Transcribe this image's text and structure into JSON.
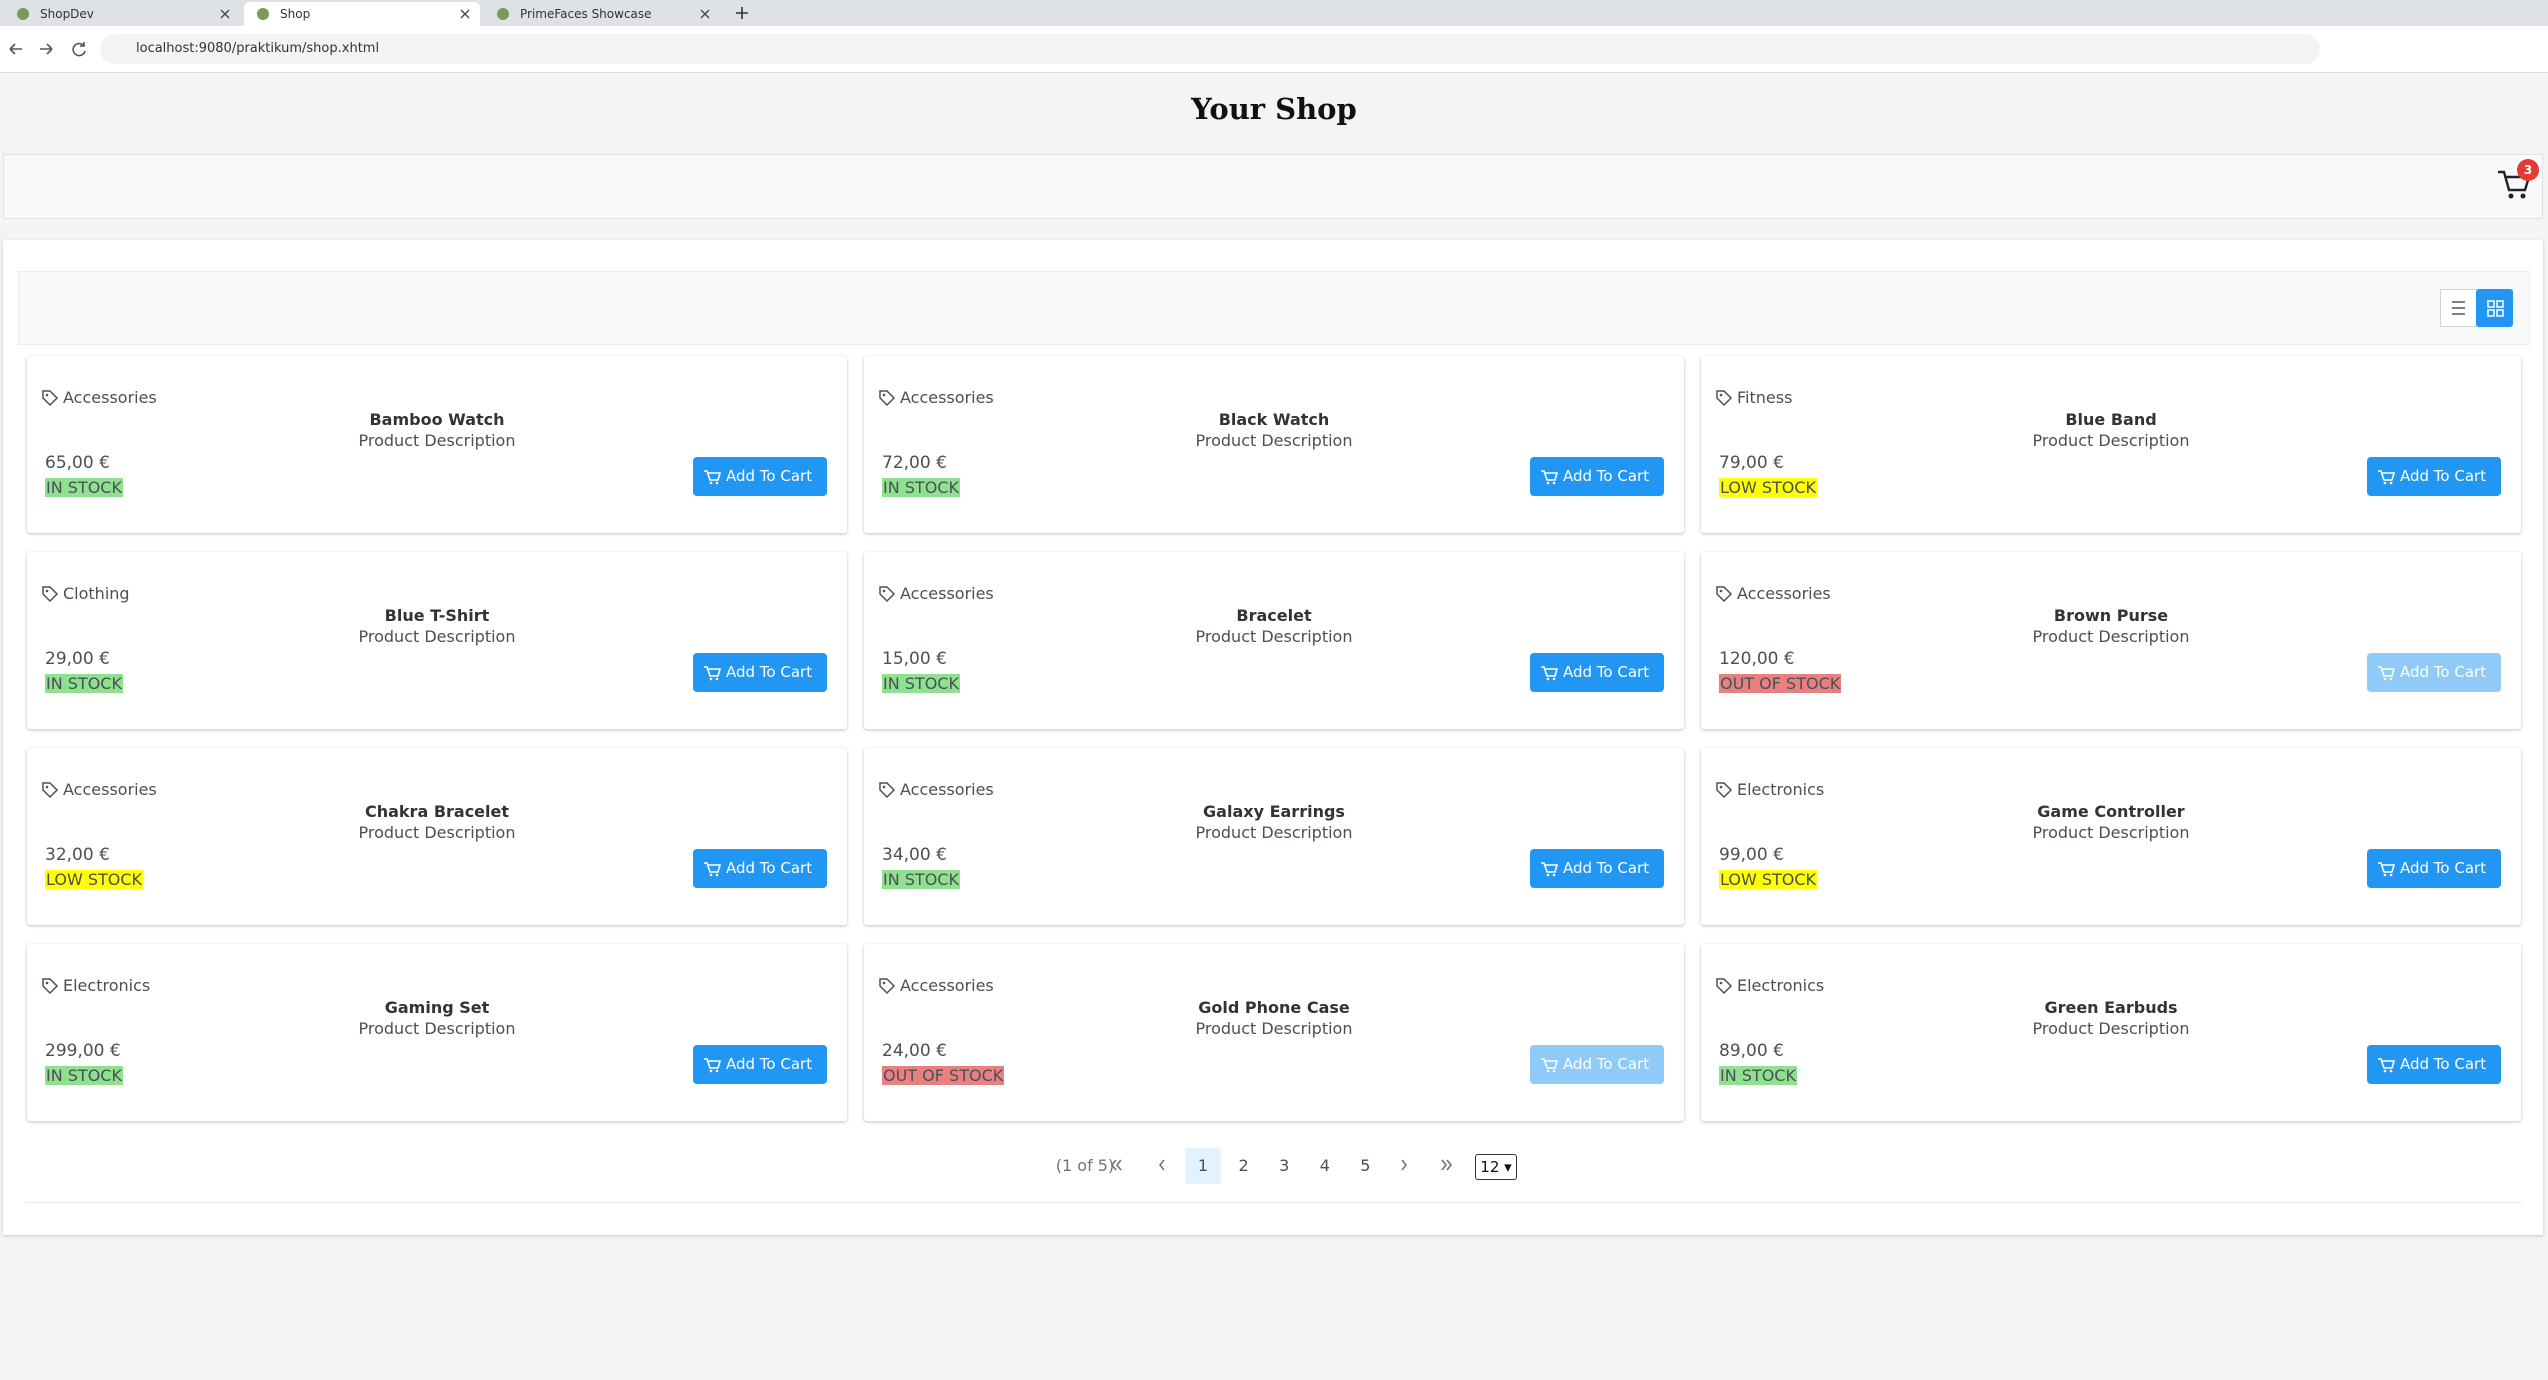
{
  "browser": {
    "tabs": [
      "ShopDev",
      "Shop",
      "PrimeFaces Showcase"
    ],
    "active_tab": 1,
    "url": "localhost:9080/praktikum/shop.xhtml"
  },
  "header": {
    "title": "Your Shop",
    "cart_count": "3"
  },
  "products": [
    {
      "category": "Accessories",
      "name": "Bamboo Watch",
      "description": "Product Description",
      "price": "65,00 €",
      "stock": "IN STOCK",
      "stock_color": "#8fe08f",
      "button": "Add To Cart",
      "button_disabled": false
    },
    {
      "category": "Accessories",
      "name": "Black Watch",
      "description": "Product Description",
      "price": "72,00 €",
      "stock": "IN STOCK",
      "stock_color": "#8fe08f",
      "button": "Add To Cart",
      "button_disabled": false
    },
    {
      "category": "Fitness",
      "name": "Blue Band",
      "description": "Product Description",
      "price": "79,00 €",
      "stock": "LOW STOCK",
      "stock_color": "#ffff00",
      "button": "Add To Cart",
      "button_disabled": false
    },
    {
      "category": "Clothing",
      "name": "Blue T-Shirt",
      "description": "Product Description",
      "price": "29,00 €",
      "stock": "IN STOCK",
      "stock_color": "#8fe08f",
      "button": "Add To Cart",
      "button_disabled": false
    },
    {
      "category": "Accessories",
      "name": "Bracelet",
      "description": "Product Description",
      "price": "15,00 €",
      "stock": "IN STOCK",
      "stock_color": "#8fe08f",
      "button": "Add To Cart",
      "button_disabled": false
    },
    {
      "category": "Accessories",
      "name": "Brown Purse",
      "description": "Product Description",
      "price": "120,00 €",
      "stock": "OUT OF STOCK",
      "stock_color": "#e88080",
      "button": "Add To Cart",
      "button_disabled": true
    },
    {
      "category": "Accessories",
      "name": "Chakra Bracelet",
      "description": "Product Description",
      "price": "32,00 €",
      "stock": "LOW STOCK",
      "stock_color": "#ffff00",
      "button": "Add To Cart",
      "button_disabled": false
    },
    {
      "category": "Accessories",
      "name": "Galaxy Earrings",
      "description": "Product Description",
      "price": "34,00 €",
      "stock": "IN STOCK",
      "stock_color": "#8fe08f",
      "button": "Add To Cart",
      "button_disabled": false
    },
    {
      "category": "Electronics",
      "name": "Game Controller",
      "description": "Product Description",
      "price": "99,00 €",
      "stock": "LOW STOCK",
      "stock_color": "#ffff00",
      "button": "Add To Cart",
      "button_disabled": false
    },
    {
      "category": "Electronics",
      "name": "Gaming Set",
      "description": "Product Description",
      "price": "299,00 €",
      "stock": "IN STOCK",
      "stock_color": "#8fe08f",
      "button": "Add To Cart",
      "button_disabled": false
    },
    {
      "category": "Accessories",
      "name": "Gold Phone Case",
      "description": "Product Description",
      "price": "24,00 €",
      "stock": "OUT OF STOCK",
      "stock_color": "#e88080",
      "button": "Add To Cart",
      "button_disabled": true
    },
    {
      "category": "Electronics",
      "name": "Green Earbuds",
      "description": "Product Description",
      "price": "89,00 €",
      "stock": "IN STOCK",
      "stock_color": "#8fe08f",
      "button": "Add To Cart",
      "button_disabled": false
    }
  ],
  "pagination": {
    "summary": "(1 of 5)",
    "pages": [
      "1",
      "2",
      "3",
      "4",
      "5"
    ],
    "current": 0,
    "rows_per_page": "12"
  }
}
